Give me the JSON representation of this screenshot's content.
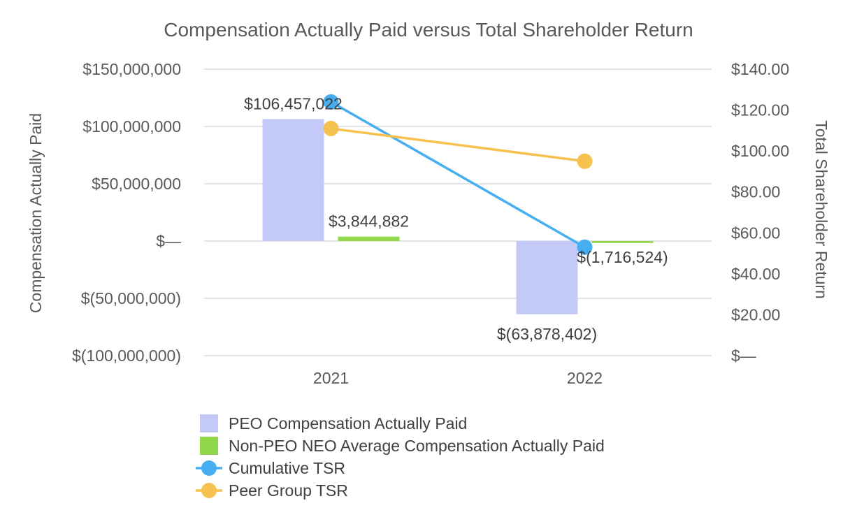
{
  "chart_data": {
    "type": "bar",
    "title": "Compensation Actually Paid versus Total Shareholder Return",
    "categories": [
      "2021",
      "2022"
    ],
    "ylabel": "Compensation Actually Paid",
    "y2label": "Total Shareholder Return",
    "ylim": [
      -100000000,
      150000000
    ],
    "y2lim": [
      0,
      140
    ],
    "yticks": [
      {
        "value": 150000000,
        "label": "$150,000,000"
      },
      {
        "value": 100000000,
        "label": "$100,000,000"
      },
      {
        "value": 50000000,
        "label": "$50,000,000"
      },
      {
        "value": 0,
        "label": "$—"
      },
      {
        "value": -50000000,
        "label": "$(50,000,000)"
      },
      {
        "value": -100000000,
        "label": "$(100,000,000)"
      }
    ],
    "y2ticks": [
      {
        "value": 140,
        "label": "$140.00"
      },
      {
        "value": 120,
        "label": "$120.00"
      },
      {
        "value": 100,
        "label": "$100.00"
      },
      {
        "value": 80,
        "label": "$80.00"
      },
      {
        "value": 60,
        "label": "$60.00"
      },
      {
        "value": 40,
        "label": "$40.00"
      },
      {
        "value": 20,
        "label": "$20.00"
      },
      {
        "value": 0,
        "label": "$—"
      }
    ],
    "grid": true,
    "legend_position": "bottom",
    "bar_series": [
      {
        "name": "PEO Compensation Actually Paid",
        "color": "#c3caf8",
        "values": [
          106457022,
          -63878402
        ],
        "labels": [
          "$106,457,022",
          "$(63,878,402)"
        ]
      },
      {
        "name": "Non-PEO NEO Average Compensation Actually Paid",
        "color": "#92d84b",
        "values": [
          3844882,
          -1716524
        ],
        "labels": [
          "$3,844,882",
          "$(1,716,524)"
        ]
      }
    ],
    "line_series": [
      {
        "name": "Cumulative TSR",
        "color": "#45aff2",
        "axis": "right",
        "values": [
          124,
          53
        ]
      },
      {
        "name": "Peer Group TSR",
        "color": "#f7c150",
        "axis": "right",
        "values": [
          111,
          95
        ]
      }
    ]
  }
}
